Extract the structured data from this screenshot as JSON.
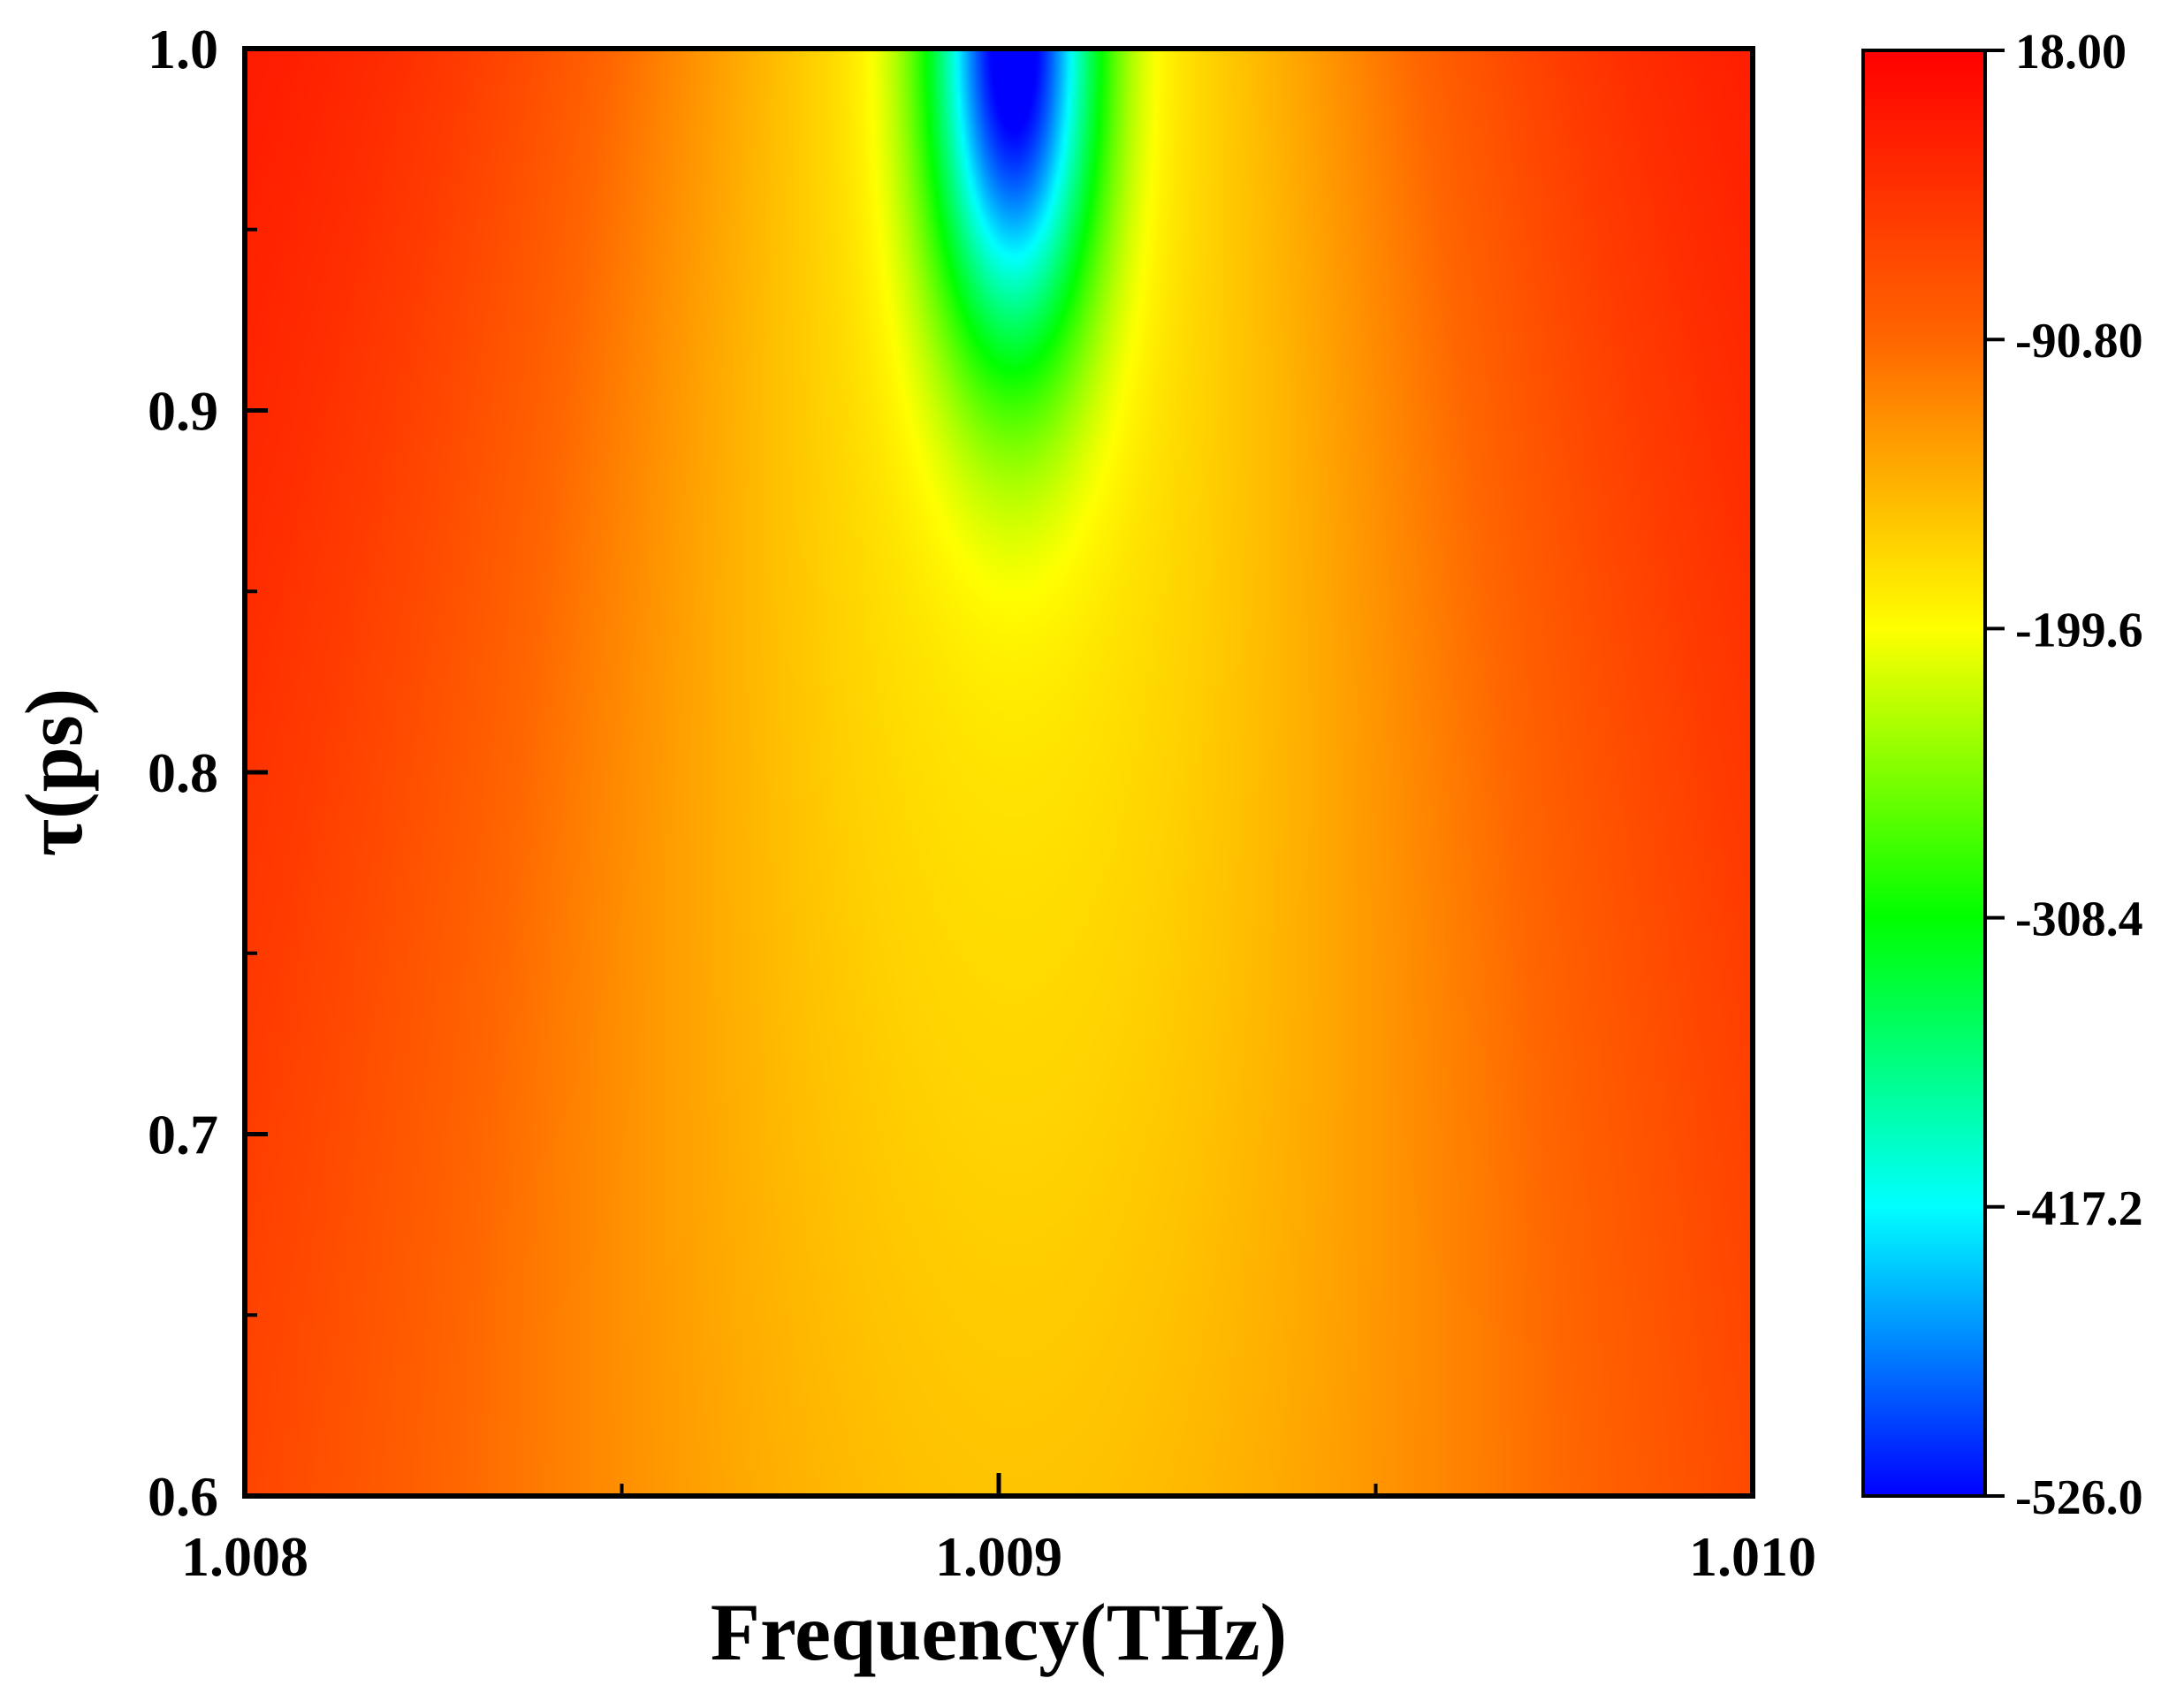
{
  "chart_data": {
    "type": "heatmap",
    "title": "",
    "xlabel": "Frequency(THz)",
    "ylabel": "τ(ps)",
    "xlim": [
      1.008,
      1.01
    ],
    "ylim": [
      0.6,
      1.0
    ],
    "x_ticks": [
      {
        "value": 1.008,
        "label": "1.008"
      },
      {
        "value": 1.009,
        "label": "1.009"
      },
      {
        "value": 1.01,
        "label": "1.010"
      }
    ],
    "x_minor_ticks": [
      1.0085,
      1.0095
    ],
    "y_ticks": [
      {
        "value": 0.6,
        "label": "0.6"
      },
      {
        "value": 0.7,
        "label": "0.7"
      },
      {
        "value": 0.8,
        "label": "0.8"
      },
      {
        "value": 0.9,
        "label": "0.9"
      },
      {
        "value": 1.0,
        "label": "1.0"
      }
    ],
    "y_minor_ticks": [
      0.65,
      0.75,
      0.85,
      0.95
    ],
    "colorbar": {
      "min": -526.0,
      "max": 18.0,
      "ticks": [
        {
          "value": 18.0,
          "label": "18.00"
        },
        {
          "value": -90.8,
          "label": "-90.80"
        },
        {
          "value": -199.6,
          "label": "-199.6"
        },
        {
          "value": -308.4,
          "label": "-308.4"
        },
        {
          "value": -417.2,
          "label": "-417.2"
        },
        {
          "value": -526.0,
          "label": "-526.0"
        }
      ],
      "colors": [
        "#0000ff",
        "#00ffff",
        "#00ff00",
        "#ffff00",
        "#ff6600",
        "#ff0000"
      ]
    },
    "field": {
      "center_x": 1.00902,
      "background": 0.0,
      "valley_depth": -175.0,
      "valley_width": [
        0.001,
        0.0006
      ],
      "peak_value": -526.0,
      "peak_y": 1.0,
      "peak_width_x": 0.00011,
      "peak_width_y": 0.085
    }
  }
}
